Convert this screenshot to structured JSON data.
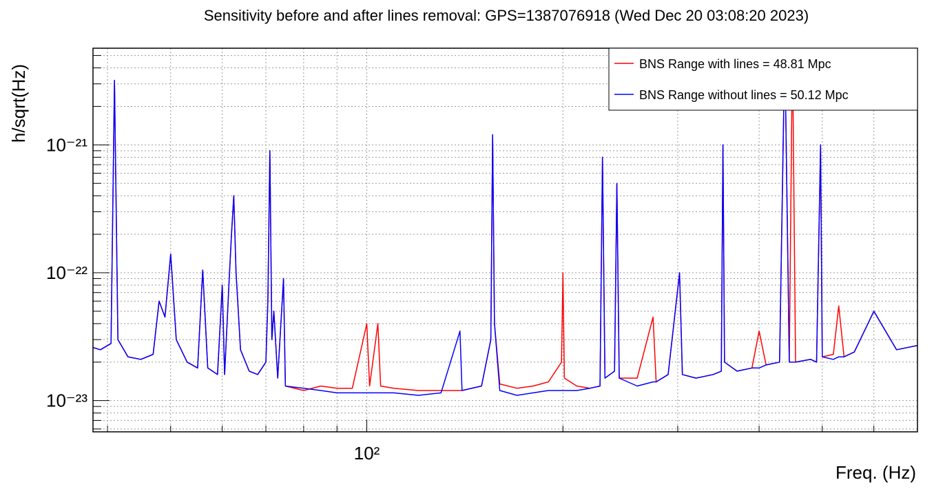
{
  "chart_data": {
    "type": "line",
    "title": "Sensitivity before and after lines removal: GPS=1387076918 (Wed Dec 20 03:08:20 2023)",
    "x_label": "Freq. (Hz)",
    "y_label": "h/sqrt(Hz)",
    "log_x": true,
    "log_y": true,
    "grid": true,
    "legend": "top-right",
    "xlim": [
      38,
      700
    ],
    "ylim": [
      5.7e-24,
      5.7e-21
    ],
    "xticks": [
      {
        "value": 100,
        "label": "10²"
      }
    ],
    "yticks": [
      {
        "value": 1e-23,
        "label": "10⁻²³"
      },
      {
        "value": 1e-22,
        "label": "10⁻²²"
      },
      {
        "value": 1e-21,
        "label": "10⁻²¹"
      }
    ],
    "xgrid": [
      40,
      50,
      60,
      70,
      80,
      90,
      200,
      300,
      400,
      500,
      600
    ],
    "ygrid": [
      6e-24,
      7e-24,
      8e-24,
      9e-24,
      2e-23,
      3e-23,
      4e-23,
      5e-23,
      6e-23,
      7e-23,
      8e-23,
      9e-23,
      2e-22,
      3e-22,
      4e-22,
      5e-22,
      6e-22,
      7e-22,
      8e-22,
      9e-22,
      2e-21,
      3e-21,
      4e-21,
      5e-21
    ],
    "x": [
      38,
      39,
      40.5,
      41,
      41.5,
      43,
      45,
      47,
      48,
      49,
      50,
      51,
      53,
      55,
      56,
      57,
      59,
      60,
      60.5,
      61.5,
      62,
      62.5,
      63,
      64,
      66,
      68,
      70,
      70.5,
      71,
      71.5,
      72,
      73,
      74.5,
      75,
      80,
      85,
      90,
      95,
      100,
      101,
      104,
      105,
      110,
      120,
      130,
      139,
      140,
      150,
      155,
      156,
      157,
      160,
      170,
      180,
      190,
      199,
      200,
      201,
      210,
      220,
      228,
      230,
      232,
      240,
      242,
      244,
      260,
      275,
      278,
      290,
      302,
      305,
      320,
      340,
      350,
      352,
      354,
      370,
      390,
      400,
      410,
      430,
      438,
      445,
      450,
      455,
      480,
      490,
      497,
      500,
      520,
      530,
      540,
      560,
      600,
      650,
      700
    ],
    "series": [
      {
        "name": "BNS Range with lines = 48.81 Mpc",
        "color": "#ff0000",
        "values": [
          2.6e-23,
          2.5e-23,
          2.8e-23,
          3.2e-21,
          3e-23,
          2.2e-23,
          2.1e-23,
          2.3e-23,
          6e-23,
          4.5e-23,
          1.4e-22,
          3e-23,
          2e-23,
          1.8e-23,
          1.05e-22,
          1.8e-23,
          1.6e-23,
          8e-23,
          1.6e-23,
          9e-23,
          2e-22,
          4e-22,
          1e-22,
          2.5e-23,
          1.7e-23,
          1.6e-23,
          2e-23,
          6e-23,
          9e-22,
          3e-23,
          5e-23,
          1.5e-23,
          9e-23,
          1.3e-23,
          1.2e-23,
          1.3e-23,
          1.25e-23,
          1.25e-23,
          4e-23,
          1.3e-23,
          4e-23,
          1.3e-23,
          1.25e-23,
          1.2e-23,
          1.2e-23,
          1.2e-23,
          1.2e-23,
          1.3e-23,
          3e-23,
          1.2e-21,
          4e-23,
          1.35e-23,
          1.25e-23,
          1.3e-23,
          1.4e-23,
          2e-23,
          1e-22,
          1.5e-23,
          1.3e-23,
          1.25e-23,
          1.3e-23,
          8e-22,
          1.5e-23,
          1.7e-23,
          5e-22,
          1.5e-23,
          1.5e-23,
          4.5e-23,
          1.4e-23,
          1.6e-23,
          1e-22,
          1.6e-23,
          1.5e-23,
          1.6e-23,
          1.7e-23,
          1e-21,
          2e-23,
          1.7e-23,
          1.8e-23,
          3.5e-23,
          1.9e-23,
          2e-23,
          6e-21,
          2e-23,
          6e-21,
          2e-23,
          2.1e-23,
          2e-23,
          1e-21,
          2.2e-23,
          2.3e-23,
          5.5e-23,
          2.2e-23,
          2.4e-23,
          5e-23,
          2.5e-23,
          2.7e-23
        ]
      },
      {
        "name": "BNS Range without lines = 50.12 Mpc",
        "color": "#0000ff",
        "values": [
          2.6e-23,
          2.5e-23,
          2.8e-23,
          3.2e-21,
          3e-23,
          2.2e-23,
          2.1e-23,
          2.3e-23,
          6e-23,
          4.5e-23,
          1.4e-22,
          3e-23,
          2e-23,
          1.8e-23,
          1.05e-22,
          1.8e-23,
          1.6e-23,
          8e-23,
          1.6e-23,
          9e-23,
          2e-22,
          4e-22,
          1e-22,
          2.5e-23,
          1.7e-23,
          1.6e-23,
          2e-23,
          6e-23,
          9e-22,
          3e-23,
          5e-23,
          1.5e-23,
          9e-23,
          1.3e-23,
          1.25e-23,
          1.2e-23,
          1.15e-23,
          1.15e-23,
          1.15e-23,
          1.15e-23,
          1.15e-23,
          1.15e-23,
          1.15e-23,
          1.1e-23,
          1.15e-23,
          3.5e-23,
          1.2e-23,
          1.3e-23,
          3e-23,
          1.2e-21,
          4e-23,
          1.2e-23,
          1.1e-23,
          1.15e-23,
          1.2e-23,
          1.2e-23,
          1.2e-23,
          1.2e-23,
          1.2e-23,
          1.25e-23,
          1.3e-23,
          8e-22,
          1.5e-23,
          1.7e-23,
          5e-22,
          1.5e-23,
          1.3e-23,
          1.4e-23,
          1.4e-23,
          1.6e-23,
          1e-22,
          1.6e-23,
          1.5e-23,
          1.6e-23,
          1.7e-23,
          1e-21,
          2e-23,
          1.7e-23,
          1.8e-23,
          1.8e-23,
          1.9e-23,
          2e-23,
          6e-21,
          2e-23,
          2e-23,
          2e-23,
          2.1e-23,
          2e-23,
          1e-21,
          2.2e-23,
          2.1e-23,
          2.2e-23,
          2.2e-23,
          2.4e-23,
          5e-23,
          2.5e-23,
          2.7e-23
        ]
      }
    ]
  }
}
